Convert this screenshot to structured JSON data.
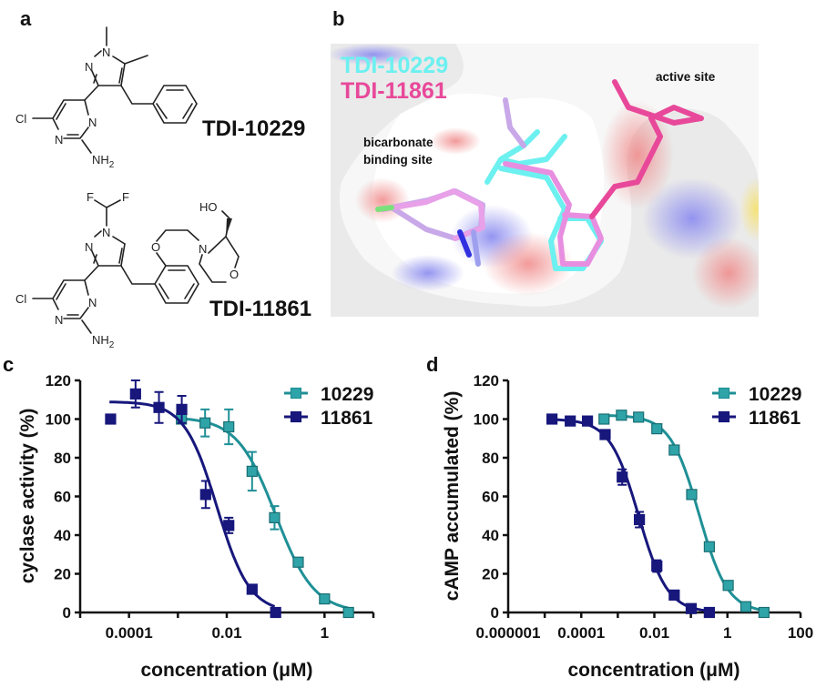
{
  "panels": {
    "a": "a",
    "b": "b",
    "c": "c",
    "d": "d"
  },
  "panel_a": {
    "compound1": {
      "name": "TDI-10229",
      "atoms": {
        "n1": "N",
        "n2": "N",
        "cl": "Cl",
        "n3": "N",
        "n4": "N",
        "nh2": "NH",
        "sub2": "2"
      }
    },
    "compound2": {
      "name": "TDI-11861",
      "atoms": {
        "f1": "F",
        "f2": "F",
        "n1": "N",
        "n2": "N",
        "cl": "Cl",
        "n3": "N",
        "n4": "N",
        "nh2": "NH",
        "sub2": "2",
        "o1": "O",
        "n5": "N",
        "o2": "O",
        "ho": "HO"
      }
    }
  },
  "panel_b": {
    "legend": [
      {
        "label": "TDI-10229",
        "color": "#6cf0f0"
      },
      {
        "label": "TDI-11861",
        "color": "#e8489a"
      }
    ],
    "annotations": {
      "bicarbonate_line1": "bicarbonate",
      "bicarbonate_line2": "binding site",
      "active_site": "active site"
    }
  },
  "colors": {
    "teal_line": "#1f9096",
    "teal_fill": "#2ea3a8",
    "navy": "#17177c"
  },
  "chart_data": [
    {
      "panel": "c",
      "type": "scatter",
      "ylabel": "cyclase activity (%)",
      "xlabel": "concentration (μM)",
      "xscale": "log",
      "xlim": [
        1e-05,
        10
      ],
      "ylim": [
        0,
        120
      ],
      "yticks": [
        "0",
        "20",
        "40",
        "60",
        "80",
        "100",
        "120"
      ],
      "xtick_labels": [
        "0.0001",
        "0.01",
        "1"
      ],
      "legend_position": "top-right",
      "series": [
        {
          "name": "10229",
          "x": [
            0.00118,
            0.0036,
            0.011,
            0.033,
            0.095,
            0.29,
            1.0,
            3.1
          ],
          "y": [
            100,
            98,
            96,
            73,
            49,
            26,
            7,
            0
          ],
          "err": [
            0,
            7,
            9,
            10,
            6,
            2,
            1,
            0
          ],
          "fit": {
            "top": 101,
            "bottom": 0,
            "log_ic50": -1.0,
            "hill": 1.1,
            "log_range": [
              -2.93,
              0.5
            ]
          }
        },
        {
          "name": "11861",
          "x": [
            4.2e-05,
            0.000136,
            0.00041,
            0.0012,
            0.0037,
            0.011,
            0.033,
            0.1
          ],
          "y": [
            100,
            113,
            106,
            105,
            61,
            45,
            12,
            0
          ],
          "err": [
            0,
            7,
            8,
            7,
            7,
            4,
            1,
            0
          ],
          "fit": {
            "top": 109,
            "bottom": 0,
            "log_ic50": -2.2,
            "hill": 1.3,
            "log_range": [
              -4.4,
              -1.02
            ]
          }
        }
      ]
    },
    {
      "panel": "d",
      "type": "scatter",
      "ylabel": "cAMP accumulated (%)",
      "xlabel": "concentration (μM)",
      "xscale": "log",
      "xlim": [
        1e-06,
        100
      ],
      "ylim": [
        0,
        120
      ],
      "yticks": [
        "0",
        "20",
        "40",
        "60",
        "80",
        "100",
        "120"
      ],
      "xtick_labels": [
        "0.000001",
        "0.0001",
        "0.01",
        "1",
        "100"
      ],
      "legend_position": "top-right",
      "series": [
        {
          "name": "10229",
          "x": [
            0.00042,
            0.00126,
            0.0037,
            0.0117,
            0.035,
            0.105,
            0.32,
            1.05,
            3.2,
            10
          ],
          "y": [
            100,
            102,
            101,
            95,
            84,
            61,
            34,
            14,
            3,
            0
          ],
          "err": [
            0,
            1,
            1,
            1,
            1,
            1,
            1,
            1,
            1,
            0
          ],
          "fit": {
            "top": 102,
            "bottom": 0,
            "log_ic50": -0.78,
            "hill": 1.1,
            "log_range": [
              -3.38,
              1.0
            ]
          }
        },
        {
          "name": "11861",
          "x": [
            1.58e-05,
            5e-05,
            0.000148,
            0.00045,
            0.00132,
            0.0039,
            0.0117,
            0.035,
            0.102,
            0.32
          ],
          "y": [
            100,
            99,
            99,
            92,
            70,
            48,
            24,
            9,
            2,
            0
          ],
          "err": [
            0,
            1,
            2,
            1,
            4,
            4,
            3,
            1,
            1,
            0
          ],
          "fit": {
            "top": 100,
            "bottom": 0,
            "log_ic50": -2.43,
            "hill": 1.1,
            "log_range": [
              -4.8,
              -0.5
            ]
          }
        }
      ]
    }
  ]
}
